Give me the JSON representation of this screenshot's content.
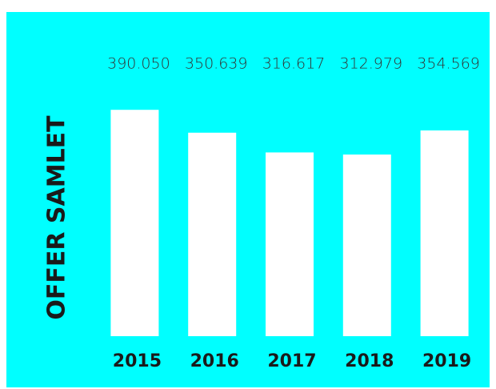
{
  "chart_data": {
    "type": "bar",
    "ylabel": "OFFER SAMLET",
    "categories": [
      "2015",
      "2016",
      "2017",
      "2018",
      "2019"
    ],
    "values": [
      390050,
      350639,
      316617,
      312979,
      354569
    ],
    "value_labels": [
      "390.050",
      "350.639",
      "316.617",
      "312.979",
      "354.569"
    ],
    "color": "#ffffff",
    "background": "#00ffff",
    "ylim": [
      0,
      400000
    ]
  }
}
